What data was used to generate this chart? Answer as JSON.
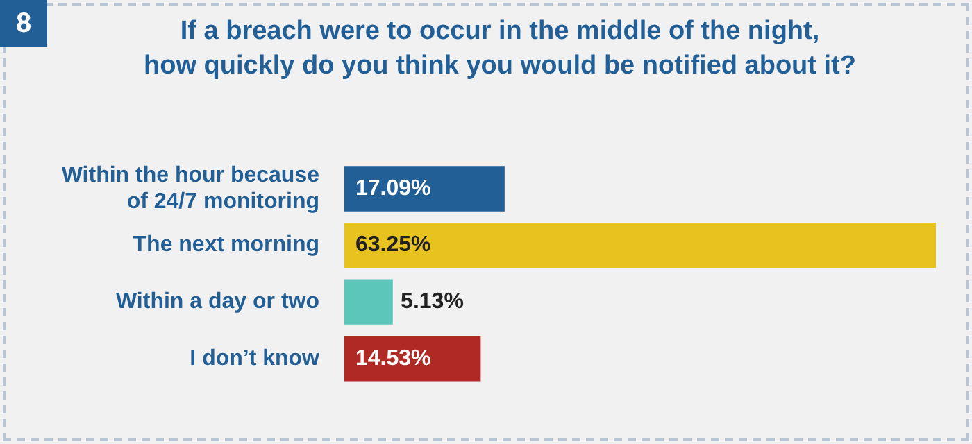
{
  "chart_data": {
    "type": "bar",
    "orientation": "horizontal",
    "title": "If a breach were to occur in the middle of the night,\nhow quickly do you think you would be notified about it?",
    "annotations": [
      "8"
    ],
    "categories": [
      "Within the hour because of 24/7 monitoring",
      "The next morning",
      "Within a day or two",
      "I don’t know"
    ],
    "values": [
      17.09,
      63.25,
      5.13,
      14.53
    ],
    "colors": [
      "#215f96",
      "#e8c21f",
      "#5cc6bb",
      "#b02a25"
    ],
    "value_labels": [
      "17.09%",
      "63.25%",
      "5.13%",
      "14.53%"
    ]
  }
}
